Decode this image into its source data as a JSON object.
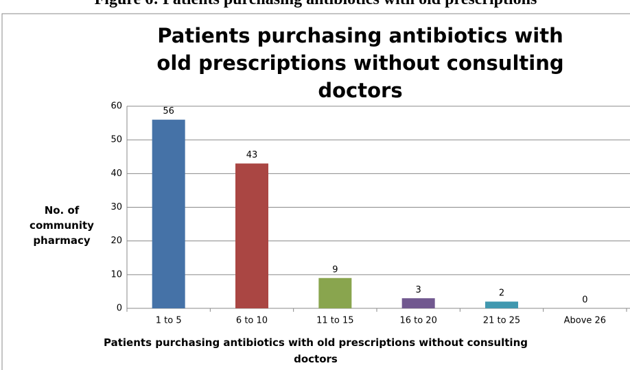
{
  "caption": "Figure 6: Patients purchasing antibiotics with old prescriptions",
  "chart_data": {
    "type": "bar",
    "title": "Patients purchasing antibiotics with old prescriptions without consulting doctors",
    "x_label": "Patients purchasing antibiotics with old prescriptions without consulting doctors",
    "y_label": "No. of community pharmacy",
    "categories": [
      "1 to 5",
      "6 to 10",
      "11 to 15",
      "16 to 20",
      "21 to 25",
      "Above 26"
    ],
    "values": [
      56,
      43,
      9,
      3,
      2,
      0
    ],
    "colors": [
      "#4572a7",
      "#aa4643",
      "#89a54e",
      "#71588f",
      "#4198af",
      "#db843d"
    ],
    "ylim": [
      0,
      60
    ],
    "yticks": [
      0,
      10,
      20,
      30,
      40,
      50,
      60
    ],
    "grid": true
  }
}
